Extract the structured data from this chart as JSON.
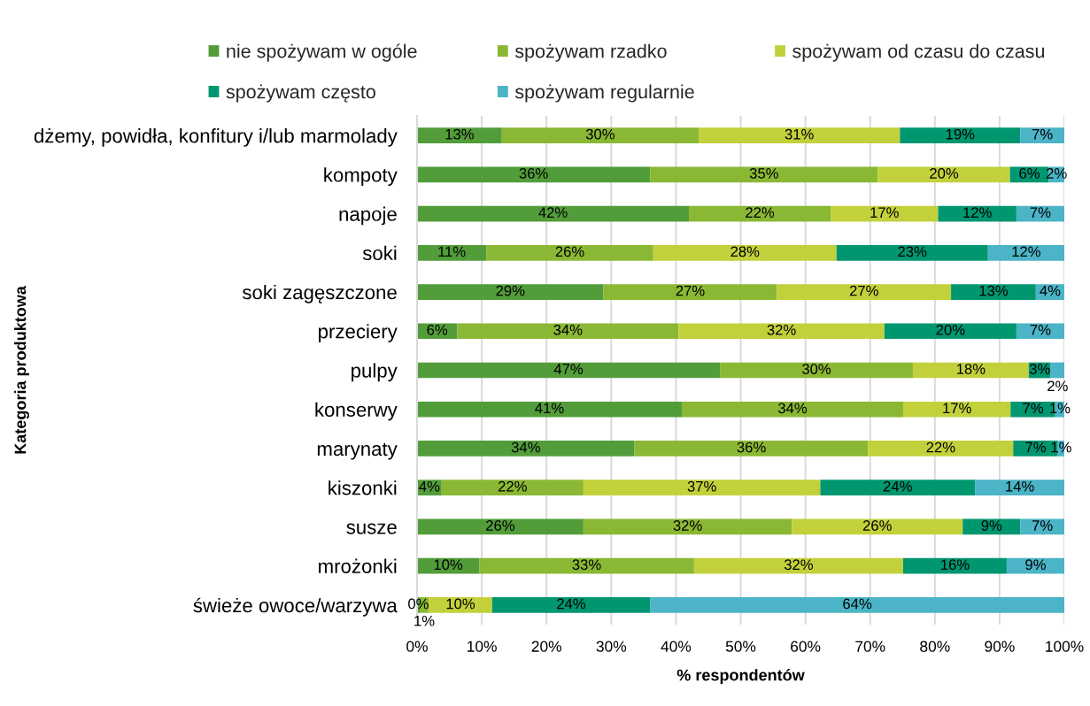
{
  "chart_data": {
    "type": "bar",
    "orientation": "horizontal",
    "stacked": true,
    "categories": [
      "dżemy, powidła, konfitury i/lub marmolady",
      "kompoty",
      "napoje",
      "soki",
      "soki zagęszczone",
      "przeciery",
      "pulpy",
      "konserwy",
      "marynaty",
      "kiszonki",
      "susze",
      "mrożonki",
      "świeże owoce/warzywa"
    ],
    "series": [
      {
        "name": "nie spożywam w ogóle",
        "color": "#529d3a",
        "values": [
          13.1,
          36.0,
          42.0,
          10.7,
          28.8,
          6.2,
          46.8,
          40.9,
          33.6,
          3.8,
          25.7,
          9.6,
          0.4
        ],
        "value_labels": [
          "13%",
          "36%",
          "42%",
          "11%",
          "29%",
          "6%",
          "47%",
          "41%",
          "34%",
          "4%",
          "26%",
          "10%",
          "0%"
        ]
      },
      {
        "name": "spożywam rzadko",
        "color": "#8ab834",
        "values": [
          30.4,
          35.2,
          21.9,
          25.8,
          26.8,
          34.2,
          29.8,
          34.2,
          36.1,
          21.9,
          32.2,
          33.2,
          1.4
        ],
        "value_labels": [
          "30%",
          "35%",
          "22%",
          "26%",
          "27%",
          "34%",
          "30%",
          "34%",
          "36%",
          "22%",
          "32%",
          "33%",
          "1%"
        ]
      },
      {
        "name": "spożywam od czasu do czasu",
        "color": "#c2d13b",
        "values": [
          31.1,
          20.4,
          16.6,
          28.3,
          26.9,
          31.8,
          17.9,
          16.6,
          22.4,
          36.6,
          26.4,
          32.3,
          9.8
        ],
        "value_labels": [
          "31%",
          "20%",
          "17%",
          "28%",
          "27%",
          "32%",
          "18%",
          "17%",
          "22%",
          "37%",
          "26%",
          "32%",
          "10%"
        ]
      },
      {
        "name": "spożywam często",
        "color": "#009670",
        "values": [
          18.6,
          6.0,
          12.1,
          23.4,
          13.1,
          20.4,
          3.4,
          6.9,
          6.9,
          23.9,
          8.9,
          16.0,
          24.4
        ],
        "value_labels": [
          "19%",
          "6%",
          "12%",
          "23%",
          "13%",
          "20%",
          "3%",
          "7%",
          "7%",
          "24%",
          "9%",
          "16%",
          "24%"
        ]
      },
      {
        "name": "spożywam regularnie",
        "color": "#4bb4c6",
        "values": [
          6.8,
          2.4,
          7.4,
          11.8,
          4.4,
          7.4,
          2.1,
          1.4,
          1.0,
          13.8,
          6.8,
          8.9,
          64.0
        ],
        "value_labels": [
          "7%",
          "2%",
          "7%",
          "12%",
          "4%",
          "7%",
          "2%",
          "1%",
          "1%",
          "14%",
          "7%",
          "9%",
          "64%"
        ]
      }
    ],
    "xlim": [
      0,
      100
    ],
    "xticks": [
      {
        "value": 0,
        "label": "0%"
      },
      {
        "value": 10,
        "label": "10%"
      },
      {
        "value": 20,
        "label": "20%"
      },
      {
        "value": 30,
        "label": "30%"
      },
      {
        "value": 40,
        "label": "40%"
      },
      {
        "value": 50,
        "label": "50%"
      },
      {
        "value": 60,
        "label": "60%"
      },
      {
        "value": 70,
        "label": "70%"
      },
      {
        "value": 80,
        "label": "80%"
      },
      {
        "value": 90,
        "label": "90%"
      },
      {
        "value": 100,
        "label": "100%"
      }
    ],
    "xlabel": "% respondentów",
    "ylabel": "Kategoria produktowa",
    "grid": "x",
    "legend": "top"
  }
}
